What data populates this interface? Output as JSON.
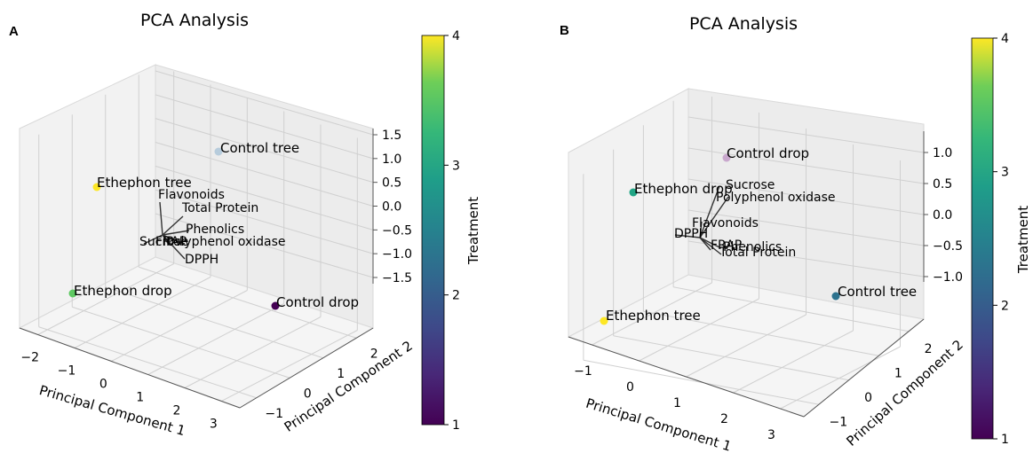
{
  "chart_data": [
    {
      "panel": "A",
      "type": "scatter",
      "title": "PCA Analysis",
      "xlabel": "Principal Component 1",
      "ylabel": "Principal Component 2",
      "zlabel": "",
      "x_ticks": [
        "−2",
        "−1",
        "0",
        "1",
        "2",
        "3"
      ],
      "y_ticks": [
        "−1",
        "0",
        "1",
        "2"
      ],
      "z_ticks": [
        "1.5",
        "1.0",
        "0.5",
        "0.0",
        "−0.5",
        "−1.0",
        "−1.5"
      ],
      "colorbar": {
        "label": "Treatment",
        "ticks": [
          "1",
          "2",
          "3",
          "4"
        ],
        "range": [
          1,
          4
        ]
      },
      "points": [
        {
          "label": "Control tree",
          "treatment": 2,
          "color": "#b7ccdc"
        },
        {
          "label": "Ethephon tree",
          "treatment": 4,
          "color": "#fde725"
        },
        {
          "label": "Ethephon drop",
          "treatment": 3,
          "color": "#5ec962"
        },
        {
          "label": "Control drop",
          "treatment": 1,
          "color": "#440154"
        }
      ],
      "loadings": [
        "Flavonoids",
        "Total Protein",
        "Phenolics",
        "Polyphenol oxidase",
        "Sucrose",
        "FRAP",
        "DPPH"
      ]
    },
    {
      "panel": "B",
      "type": "scatter",
      "title": "PCA Analysis",
      "xlabel": "Principal Component 1",
      "ylabel": "Principal Component 2",
      "zlabel": "",
      "x_ticks": [
        "−1",
        "0",
        "1",
        "2",
        "3"
      ],
      "y_ticks": [
        "−1",
        "0",
        "1",
        "2"
      ],
      "z_ticks": [
        "1.0",
        "0.5",
        "0.0",
        "−0.5",
        "−1.0"
      ],
      "colorbar": {
        "label": "Treatment",
        "ticks": [
          "1",
          "2",
          "3",
          "4"
        ],
        "range": [
          1,
          4
        ]
      },
      "points": [
        {
          "label": "Control drop",
          "treatment": 1,
          "color": "#c9a8cd"
        },
        {
          "label": "Ethephon drop",
          "treatment": 3,
          "color": "#21a585"
        },
        {
          "label": "Control tree",
          "treatment": 2,
          "color": "#2c728e"
        },
        {
          "label": "Ethephon tree",
          "treatment": 4,
          "color": "#fde725"
        }
      ],
      "loadings": [
        "Sucrose",
        "Polyphenol oxidase",
        "Flavonoids",
        "DPPH",
        "FRAP",
        "Phenolics",
        "Total Protein"
      ]
    }
  ]
}
